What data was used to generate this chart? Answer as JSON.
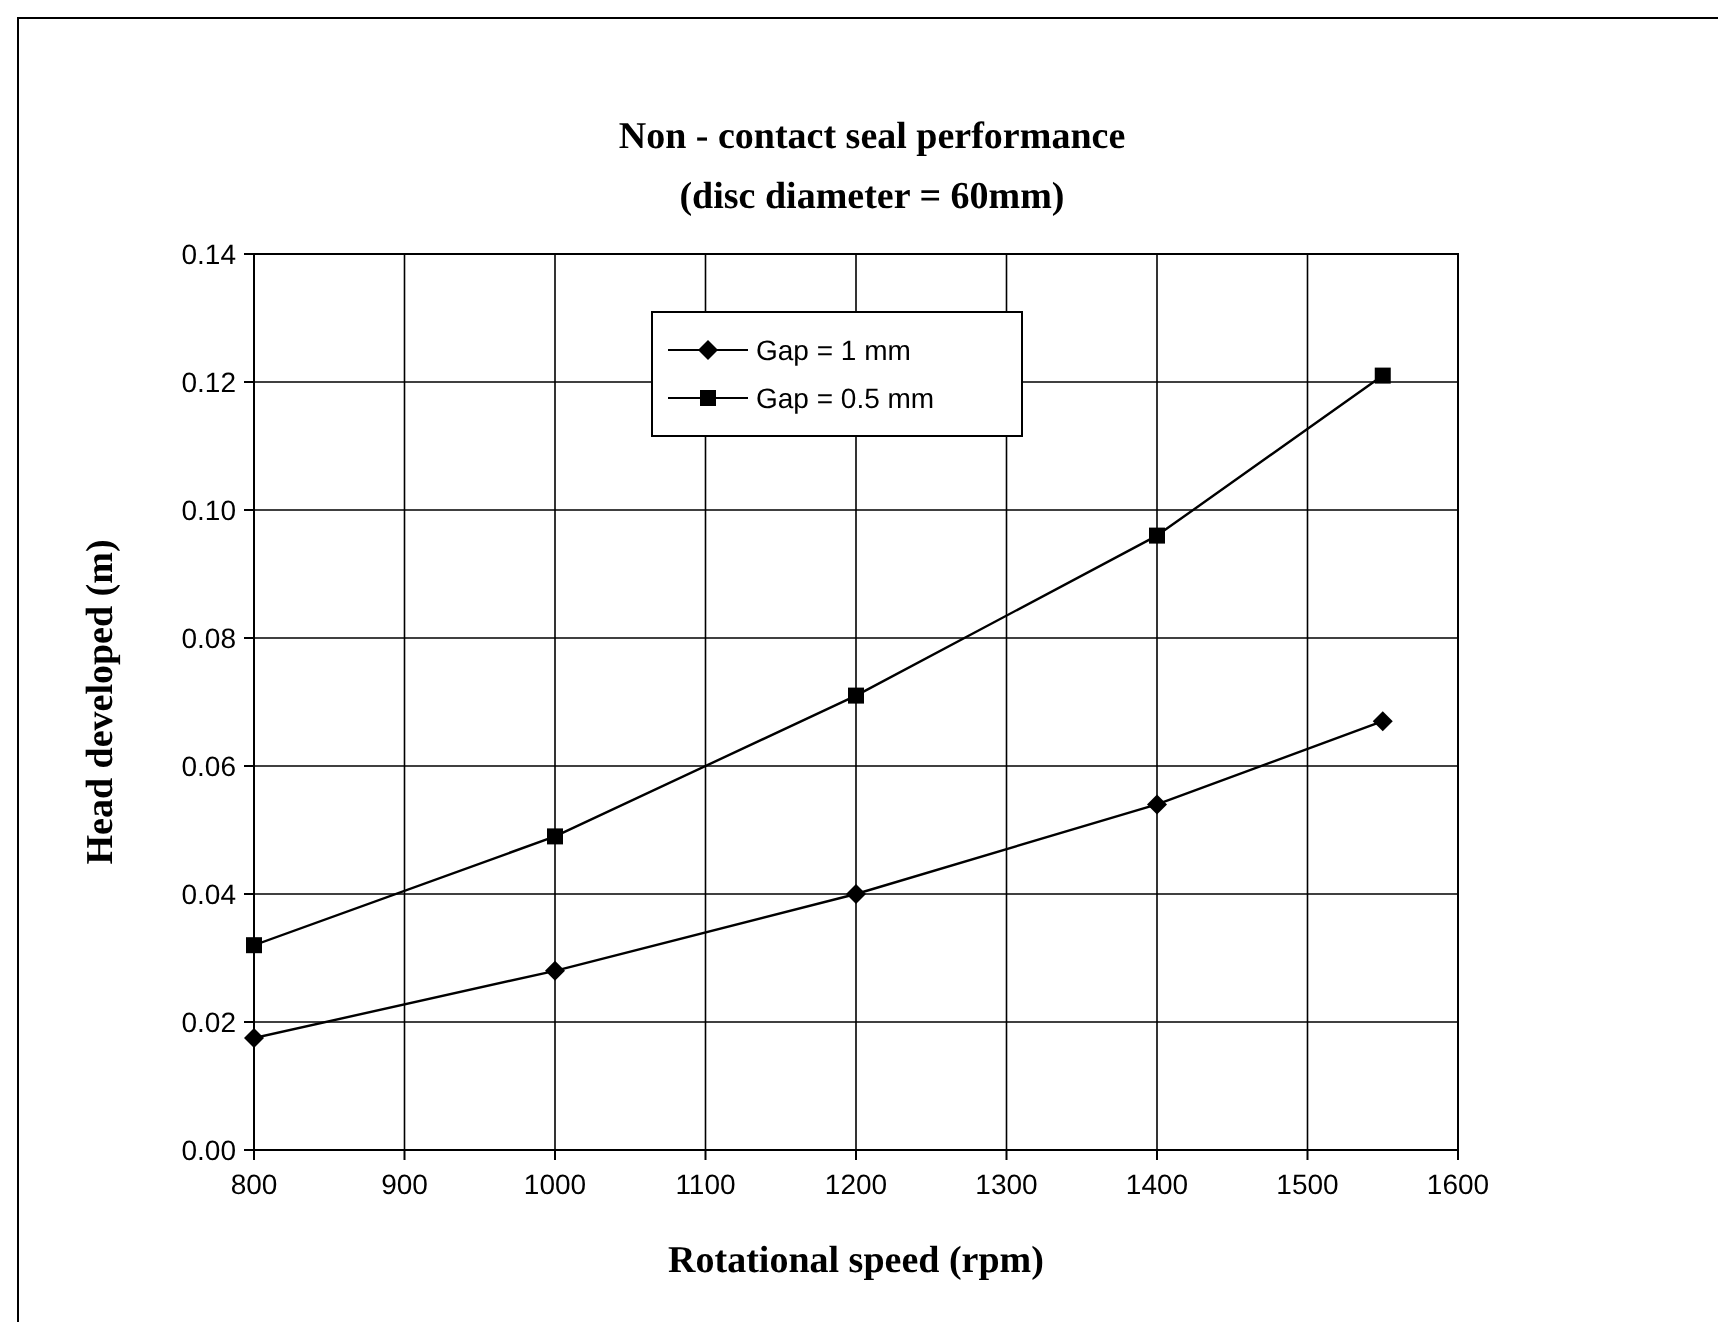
{
  "chart_data": {
    "type": "line",
    "title": "Non - contact seal performance",
    "subtitle": "(disc diameter = 60mm)",
    "xlabel": "Rotational speed (rpm)",
    "ylabel": "Head developed (m)",
    "xlim": [
      800,
      1600
    ],
    "xticks": [
      800,
      900,
      1000,
      1100,
      1200,
      1300,
      1400,
      1500,
      1600
    ],
    "ylim": [
      0,
      0.14
    ],
    "yticks": [
      {
        "value": 0,
        "label": "0.00"
      },
      {
        "value": 0.02,
        "label": "0.02"
      },
      {
        "value": 0.04,
        "label": "0.04"
      },
      {
        "value": 0.06,
        "label": "0.06"
      },
      {
        "value": 0.08,
        "label": "0.08"
      },
      {
        "value": 0.1,
        "label": "0.10"
      },
      {
        "value": 0.12,
        "label": "0.12"
      },
      {
        "value": 0.14,
        "label": "0.14"
      }
    ],
    "grid": true,
    "legend": "top",
    "line_style": "solid",
    "series": [
      {
        "name": "Gap = 1 mm",
        "color": "#000000",
        "marker": "diamond",
        "x": [
          800,
          1000,
          1200,
          1400,
          1550
        ],
        "values": [
          0.0175,
          0.028,
          0.04,
          0.054,
          0.067
        ]
      },
      {
        "name": "Gap = 0.5 mm",
        "color": "#000000",
        "marker": "square",
        "x": [
          800,
          1000,
          1200,
          1400,
          1550
        ],
        "values": [
          0.032,
          0.049,
          0.071,
          0.096,
          0.121
        ]
      }
    ]
  }
}
